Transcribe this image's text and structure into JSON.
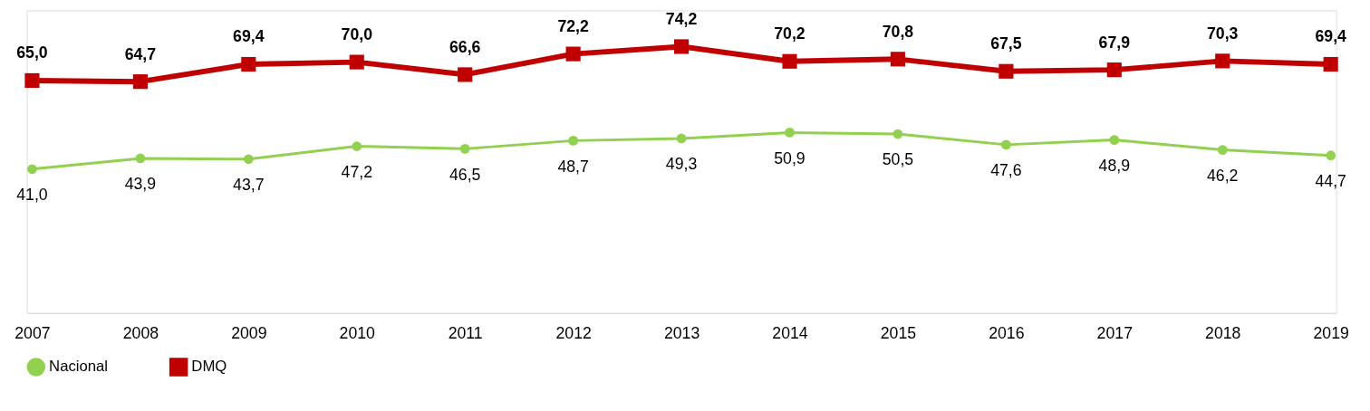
{
  "chart_data": {
    "type": "line",
    "categories": [
      "2007",
      "2008",
      "2009",
      "2010",
      "2011",
      "2012",
      "2013",
      "2014",
      "2015",
      "2016",
      "2017",
      "2018",
      "2019"
    ],
    "series": [
      {
        "name": "Nacional",
        "color": "#92d050",
        "marker": "circle",
        "values": [
          41.0,
          43.9,
          43.7,
          47.2,
          46.5,
          48.7,
          49.3,
          50.9,
          50.5,
          47.6,
          48.9,
          46.2,
          44.7
        ],
        "value_labels": [
          "41,0",
          "43,9",
          "43,7",
          "47,2",
          "46,5",
          "48,7",
          "49,3",
          "50,9",
          "50,5",
          "47,6",
          "48,9",
          "46,2",
          "44,7"
        ]
      },
      {
        "name": "DMQ",
        "color": "#c00000",
        "marker": "square",
        "values": [
          65.0,
          64.7,
          69.4,
          70.0,
          66.6,
          72.2,
          74.2,
          70.2,
          70.8,
          67.5,
          67.9,
          70.3,
          69.4
        ],
        "value_labels": [
          "65,0",
          "64,7",
          "69,4",
          "70,0",
          "66,6",
          "72,2",
          "74,2",
          "70,2",
          "70,8",
          "67,5",
          "67,9",
          "70,3",
          "69,4"
        ]
      }
    ],
    "ylim": [
      2,
      84
    ],
    "tick_labels": "x",
    "grid": false,
    "legend": "bottom"
  }
}
